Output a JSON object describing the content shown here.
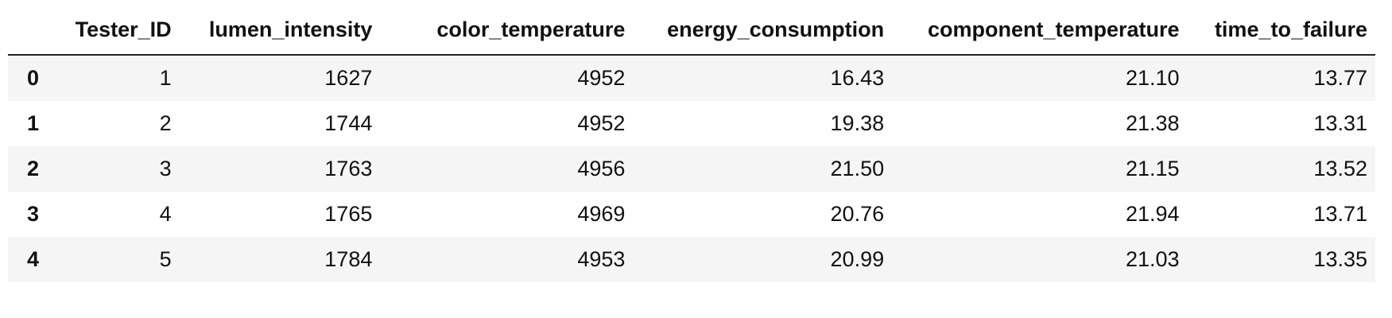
{
  "table": {
    "index_header": "",
    "columns": [
      "Tester_ID",
      "lumen_intensity",
      "color_temperature",
      "energy_consumption",
      "component_temperature",
      "time_to_failure"
    ],
    "rows": [
      {
        "index": "0",
        "cells": [
          "1",
          "1627",
          "4952",
          "16.43",
          "21.10",
          "13.77"
        ]
      },
      {
        "index": "1",
        "cells": [
          "2",
          "1744",
          "4952",
          "19.38",
          "21.38",
          "13.31"
        ]
      },
      {
        "index": "2",
        "cells": [
          "3",
          "1763",
          "4956",
          "21.50",
          "21.15",
          "13.52"
        ]
      },
      {
        "index": "3",
        "cells": [
          "4",
          "1765",
          "4969",
          "20.76",
          "21.94",
          "13.71"
        ]
      },
      {
        "index": "4",
        "cells": [
          "5",
          "1784",
          "4953",
          "20.99",
          "21.03",
          "13.35"
        ]
      }
    ]
  }
}
